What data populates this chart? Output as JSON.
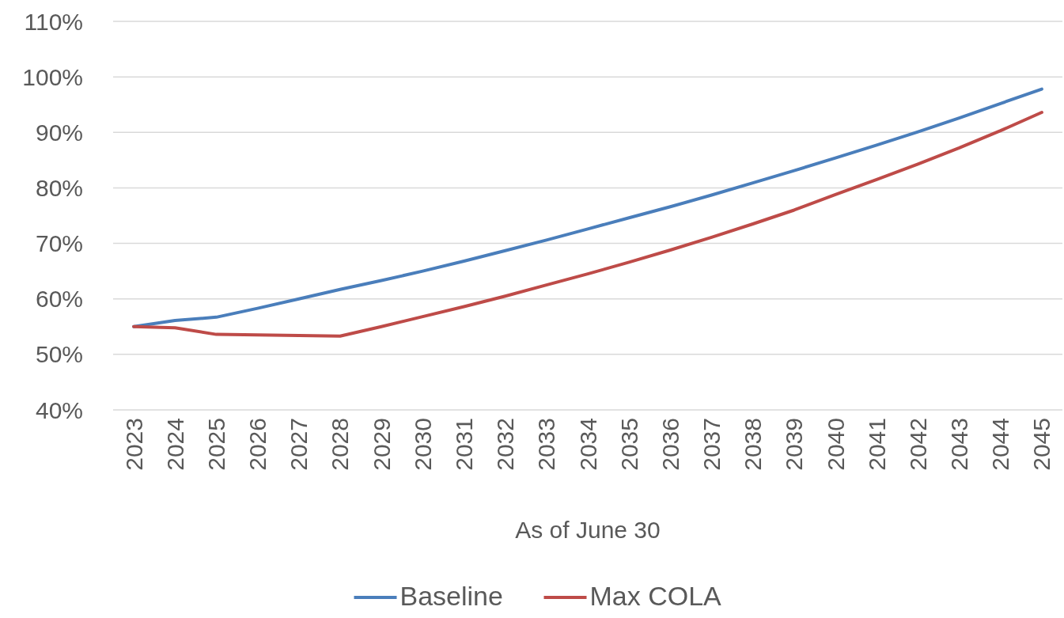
{
  "chart_data": {
    "type": "line",
    "xlabel": "As of June 30",
    "categories": [
      "2023",
      "2024",
      "2025",
      "2026",
      "2027",
      "2028",
      "2029",
      "2030",
      "2031",
      "2032",
      "2033",
      "2034",
      "2035",
      "2036",
      "2037",
      "2038",
      "2039",
      "2040",
      "2041",
      "2042",
      "2043",
      "2044",
      "2045"
    ],
    "series": [
      {
        "name": "Baseline",
        "color": "#4a7ebb",
        "values": [
          55.0,
          56.1,
          56.7,
          58.3,
          60.0,
          61.7,
          63.3,
          65.0,
          66.8,
          68.7,
          70.6,
          72.6,
          74.6,
          76.6,
          78.7,
          80.9,
          83.1,
          85.4,
          87.7,
          90.1,
          92.6,
          95.2,
          97.8
        ]
      },
      {
        "name": "Max COLA",
        "color": "#be4b48",
        "values": [
          55.0,
          54.8,
          53.6,
          53.5,
          53.4,
          53.3,
          55.0,
          56.8,
          58.6,
          60.5,
          62.5,
          64.5,
          66.6,
          68.8,
          71.1,
          73.5,
          76.0,
          78.8,
          81.5,
          84.3,
          87.2,
          90.3,
          93.6
        ]
      }
    ],
    "ylim": [
      40,
      110
    ],
    "yticks": [
      {
        "value": 40,
        "label": "40%"
      },
      {
        "value": 50,
        "label": "50%"
      },
      {
        "value": 60,
        "label": "60%"
      },
      {
        "value": 70,
        "label": "70%"
      },
      {
        "value": 80,
        "label": "80%"
      },
      {
        "value": 90,
        "label": "90%"
      },
      {
        "value": 100,
        "label": "100%"
      },
      {
        "value": 110,
        "label": "110%"
      }
    ],
    "grid": "y",
    "legend": "bottom",
    "marker": "none",
    "line_style": "solid"
  }
}
